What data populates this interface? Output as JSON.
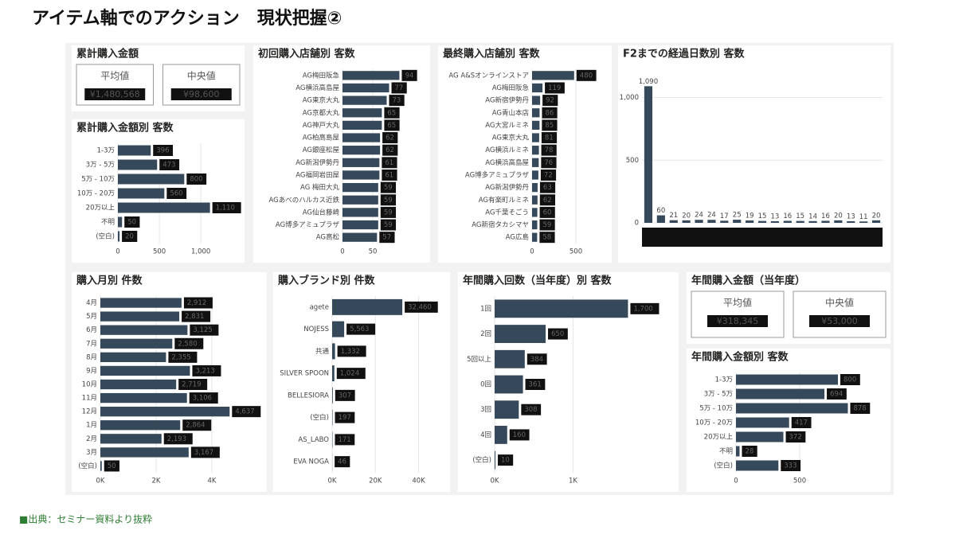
{
  "title": "アイテム軸でのアクション　現状把握②",
  "source": "■出典：セミナー資料より抜粋",
  "kpis": [
    {
      "title": "累計購入金額",
      "items": [
        {
          "label": "平均値",
          "value": "¥1,480,568"
        },
        {
          "label": "中央値",
          "value": "¥98,600"
        }
      ]
    },
    {
      "title": "年間購入金額（当年度）",
      "items": [
        {
          "label": "平均値",
          "value": "¥318,345"
        },
        {
          "label": "中央値",
          "value": "¥53,000"
        }
      ]
    }
  ],
  "chart_data": [
    {
      "type": "barh",
      "title": "累計購入金額別 客数",
      "color": "#36495a",
      "categories": [
        "1-3万",
        "3万 - 5万",
        "5万 - 10万",
        "10万 - 20万",
        "20万以上",
        "不明",
        "(空白)"
      ],
      "values": [
        396,
        473,
        800,
        560,
        1110,
        50,
        20
      ],
      "value_labels": [
        "396",
        "473",
        "800",
        "560",
        "1,110",
        "50",
        "20"
      ],
      "xlim": [
        0,
        1200
      ],
      "xticks": [
        0,
        500,
        {
          "value": 1000,
          "label": "1,000"
        }
      ]
    },
    {
      "type": "barh",
      "title": "初回購入店舗別 客数",
      "color": "#36495a",
      "categories": [
        "AG梅田阪急",
        "AG横浜高島屋",
        "AG東京大丸",
        "AG京都大丸",
        "AG神戸大丸",
        "AG柏高島屋",
        "AG銀座松屋",
        "AG新潟伊勢丹",
        "AG福岡岩田屋",
        "AG 梅田大丸",
        "AGあべのハルカス近鉄",
        "AG仙台藤崎",
        "AG博多アミュプラザ",
        "AG高松"
      ],
      "values": [
        94,
        77,
        73,
        65,
        65,
        62,
        62,
        61,
        61,
        59,
        59,
        59,
        59,
        57
      ],
      "xlim": [
        0,
        100
      ],
      "xticks": [
        0,
        50
      ]
    },
    {
      "type": "barh",
      "title": "最終購入店舗別 客数",
      "color": "#36495a",
      "categories": [
        "AG A&Sオンラインストア",
        "AG梅田阪急",
        "AG新宿伊勢丹",
        "AG青山本店",
        "AG大宮ルミネ",
        "AG東京大丸",
        "AG横浜ルミネ",
        "AG横浜高島屋",
        "AG博多アミュプラザ",
        "AG新潟伊勢丹",
        "AG有楽町ルミネ",
        "AG千葉そごう",
        "AG新宿タカシマヤ",
        "AG広島"
      ],
      "values": [
        480,
        119,
        92,
        86,
        85,
        81,
        78,
        76,
        72,
        63,
        62,
        60,
        59,
        58
      ],
      "xlim": [
        0,
        600
      ],
      "xticks": [
        0,
        500
      ]
    },
    {
      "type": "bar",
      "title": "F2までの経過日数別 客数",
      "color": "#36495a",
      "categories": [
        null,
        null,
        null,
        null,
        null,
        null,
        null,
        null,
        null,
        null,
        null,
        null,
        null,
        null,
        null,
        null,
        null,
        null,
        null
      ],
      "values": [
        1090,
        60,
        21,
        20,
        24,
        24,
        17,
        25,
        19,
        15,
        13,
        16,
        15,
        14,
        16,
        20,
        13,
        11,
        20
      ],
      "value_labels": [
        "1,090",
        "60",
        "21",
        "20",
        "24",
        "24",
        "17",
        "25",
        "19",
        "15",
        "13",
        "16",
        "15",
        "14",
        "16",
        "20",
        "13",
        "11",
        "20"
      ],
      "ylim": [
        0,
        1200
      ],
      "yticks": [
        0,
        500,
        {
          "value": 1000,
          "label": "1,000"
        }
      ]
    },
    {
      "type": "barh",
      "title": "購入月別 件数",
      "color": "#36495a",
      "categories": [
        "4月",
        "5月",
        "6月",
        "7月",
        "8月",
        "9月",
        "10月",
        "11月",
        "12月",
        "1月",
        "2月",
        "3月",
        "(空白)"
      ],
      "values": [
        2912,
        2831,
        3125,
        2580,
        2355,
        3213,
        2719,
        3106,
        4637,
        2864,
        2193,
        3167,
        50
      ],
      "value_labels": [
        "2,912",
        "2,831",
        "3,125",
        "2,580",
        "2,355",
        "3,213",
        "2,719",
        "3,106",
        "4,637",
        "2,864",
        "2,193",
        "3,167",
        "50"
      ],
      "xlim": [
        0,
        5000
      ],
      "xticks": [
        {
          "value": 0,
          "label": "0K"
        },
        {
          "value": 2000,
          "label": "2K"
        },
        {
          "value": 4000,
          "label": "4K"
        }
      ]
    },
    {
      "type": "barh",
      "title": "購入ブランド別 件数",
      "color": "#36495a",
      "categories": [
        "agete",
        "NOJESS",
        "共通",
        "SILVER SPOON",
        "BELLESIORA",
        "(空白)",
        "AS_LABO",
        "EVA NOGA"
      ],
      "values": [
        32460,
        5563,
        1332,
        1024,
        307,
        197,
        171,
        46
      ],
      "value_labels": [
        "32,460",
        "5,563",
        "1,332",
        "1,024",
        "307",
        "197",
        "171",
        "46"
      ],
      "xlim": [
        0,
        42000
      ],
      "xticks": [
        {
          "value": 0,
          "label": "0K"
        },
        {
          "value": 20000,
          "label": "20K"
        },
        {
          "value": 40000,
          "label": "40K"
        }
      ]
    },
    {
      "type": "barh",
      "title": "年間購入回数（当年度）別 客数",
      "color": "#36495a",
      "categories": [
        "1回",
        "2回",
        "5回以上",
        "0回",
        "3回",
        "4回",
        "(空白)"
      ],
      "values": [
        1700,
        650,
        384,
        361,
        308,
        160,
        10
      ],
      "value_labels": [
        "1,700",
        "650",
        "384",
        "361",
        "308",
        "160",
        "10"
      ],
      "xlim": [
        0,
        2000
      ],
      "xticks": [
        {
          "value": 0,
          "label": "0K"
        },
        {
          "value": 1000,
          "label": "1K"
        }
      ]
    },
    {
      "type": "barh",
      "title": "年間購入金額別 客数",
      "color": "#36495a",
      "categories": [
        "1-3万",
        "3万 - 5万",
        "5万 - 10万",
        "10万 - 20万",
        "20万以上",
        "不明",
        "(空白)"
      ],
      "values": [
        800,
        694,
        878,
        417,
        372,
        28,
        333
      ],
      "xlim": [
        0,
        1000
      ],
      "xticks": [
        0,
        500
      ]
    }
  ]
}
